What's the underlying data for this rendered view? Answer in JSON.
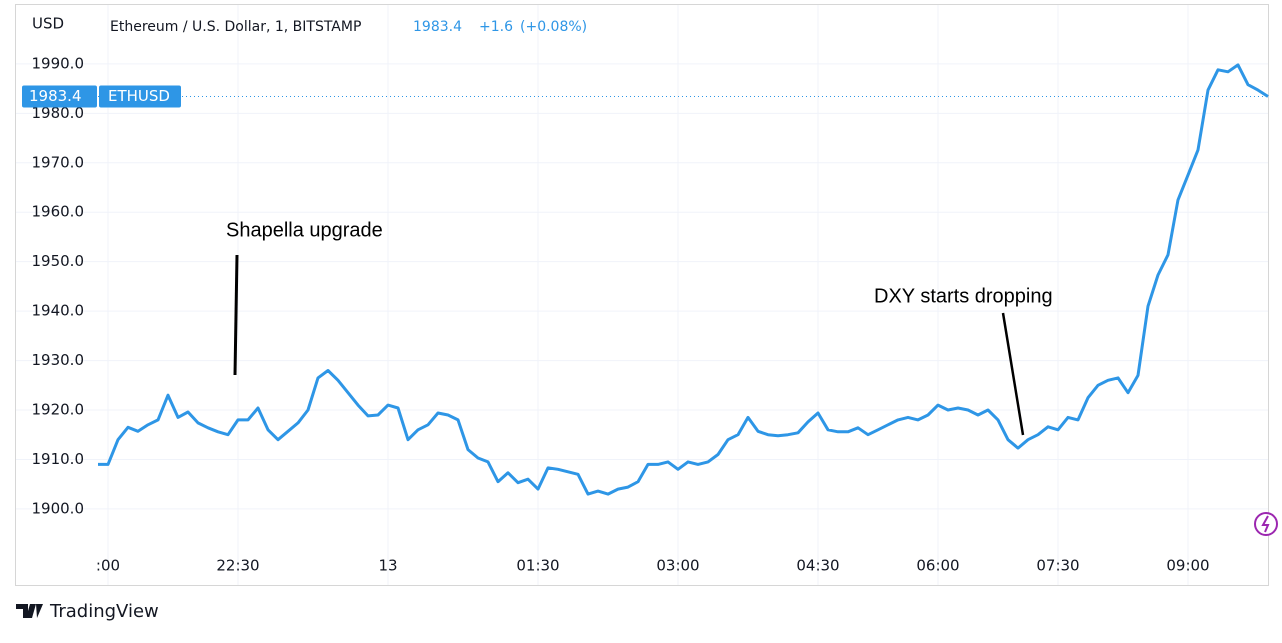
{
  "chart_data": {
    "type": "line",
    "currency": "USD",
    "title": "Ethereum / U.S. Dollar, 1, BITSTAMP",
    "change": "+1.6",
    "change_percent": "(+0.08%)",
    "annotations": [
      "Shapella upgrade",
      "DXY starts dropping"
    ],
    "brand": "TradingView",
    "categories": [
      null,
      ":00",
      null,
      null,
      null,
      null,
      null,
      null,
      null,
      null,
      null,
      null,
      null,
      null,
      "22:30",
      null,
      null,
      null,
      null,
      null,
      null,
      null,
      null,
      null,
      null,
      null,
      null,
      null,
      null,
      "13",
      null,
      null,
      null,
      null,
      null,
      null,
      null,
      null,
      null,
      null,
      null,
      null,
      null,
      null,
      "01:30",
      null,
      null,
      null,
      null,
      null,
      null,
      null,
      null,
      null,
      null,
      null,
      null,
      null,
      "03:00",
      null,
      null,
      null,
      null,
      null,
      null,
      null,
      null,
      null,
      null,
      null,
      null,
      null,
      "04:30",
      null,
      null,
      null,
      null,
      null,
      null,
      null,
      null,
      null,
      null,
      null,
      "06:00",
      null,
      null,
      null,
      null,
      null,
      null,
      null,
      null,
      null,
      null,
      null,
      "07:30",
      null,
      null,
      null,
      null,
      null,
      null,
      null,
      null,
      null,
      null,
      null,
      null,
      "09:00",
      null,
      null,
      null,
      null,
      null,
      null,
      null,
      null
    ],
    "series": [
      {
        "name": "ETHUSD",
        "color": "#2e96e6",
        "values": [
          1909,
          1909,
          1914,
          1916.5,
          1915.7,
          1917,
          1918,
          1923,
          1918.5,
          1919.6,
          1917.4,
          1916.4,
          1915.6,
          1915,
          1918,
          1918,
          1920.4,
          1916,
          1914,
          1915.7,
          1917.4,
          1920,
          1926.5,
          1928,
          1926,
          1923.5,
          1921,
          1918.8,
          1919,
          1921,
          1920.4,
          1914,
          1916,
          1917,
          1919.4,
          1919,
          1918,
          1912,
          1910.3,
          1909.5,
          1905.5,
          1907.3,
          1905.3,
          1906,
          1904,
          1908.3,
          1908,
          1907.5,
          1907,
          1903,
          1903.6,
          1903,
          1904,
          1904.4,
          1905.5,
          1909,
          1909,
          1909.5,
          1908,
          1909.5,
          1909,
          1909.5,
          1911,
          1914,
          1915,
          1918.5,
          1915.7,
          1915,
          1914.8,
          1915,
          1915.4,
          1917.6,
          1919.4,
          1916,
          1915.6,
          1915.6,
          1916.4,
          1915,
          1916,
          1917,
          1918,
          1918.5,
          1918,
          1919,
          1921,
          1920,
          1920.4,
          1920,
          1919,
          1920,
          1918,
          1914,
          1912.3,
          1914,
          1915,
          1916.6,
          1916,
          1918.5,
          1918,
          1922.5,
          1925,
          1926,
          1926.5,
          1923.5,
          1927,
          1941,
          1947.3,
          1951.4,
          1962.5,
          1967.5,
          1972.6,
          1984.7,
          1988.8,
          1988.4,
          1989.8,
          1985.8,
          1984.7,
          1983.4
        ]
      }
    ],
    "ylim": [
      1892.7,
      2000.9
    ],
    "yticks": [
      {
        "value": 1900,
        "label": "1900.0"
      },
      {
        "value": 1910,
        "label": "1910.0"
      },
      {
        "value": 1920,
        "label": "1920.0"
      },
      {
        "value": 1930,
        "label": "1930.0"
      },
      {
        "value": 1940,
        "label": "1940.0"
      },
      {
        "value": 1950,
        "label": "1950.0"
      },
      {
        "value": 1960,
        "label": "1960.0"
      },
      {
        "value": 1970,
        "label": "1970.0"
      },
      {
        "value": 1980,
        "label": "1980.0"
      },
      {
        "value": 1990,
        "label": "1990.0"
      }
    ],
    "grid": true
  }
}
